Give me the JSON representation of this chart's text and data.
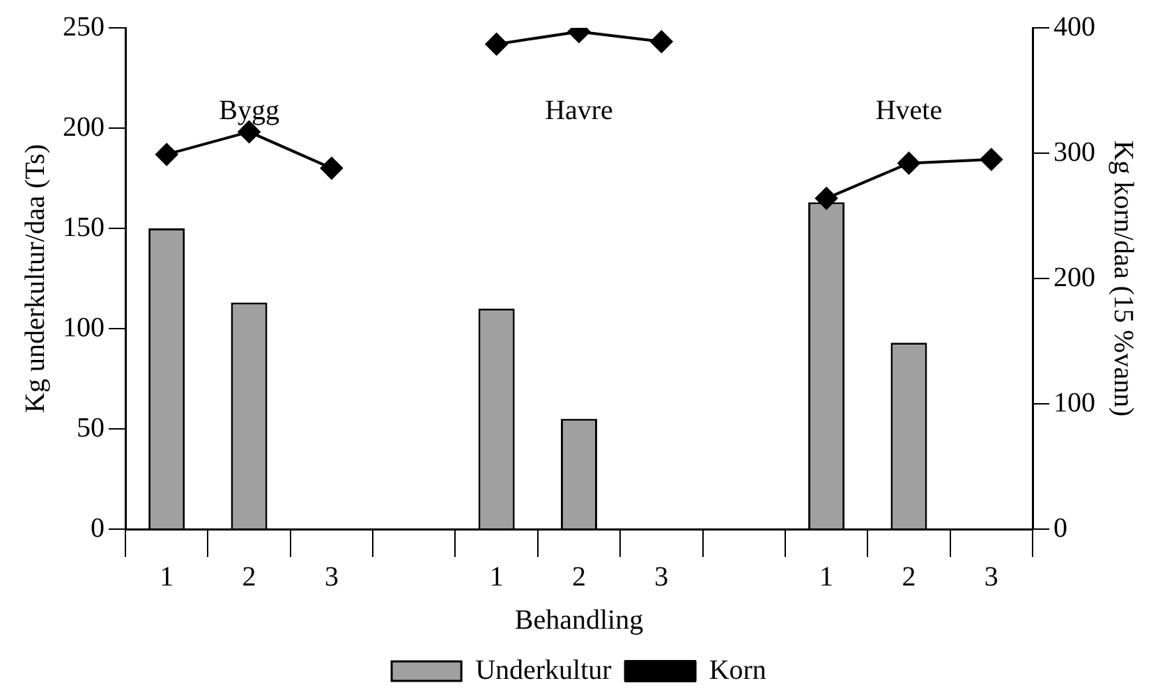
{
  "chart_data": {
    "type": "bar",
    "xlabel": "Behandling",
    "ylabel": "Kg underkultur/daa (Ts)",
    "y2label": "Kg korn/daa (15 %vann)",
    "categories": [
      "1",
      "2",
      "3",
      null,
      "1",
      "2",
      "3",
      null,
      "1",
      "2",
      "3"
    ],
    "series": [
      {
        "name": "Underkultur",
        "color": "#a0a0a0",
        "values": [
          150,
          113,
          null,
          null,
          110,
          55,
          null,
          null,
          163,
          93,
          null
        ]
      },
      {
        "name": "Korn",
        "type": "line",
        "axis": "y2",
        "color": "#000000",
        "marker": "diamond",
        "values": [
          299,
          317,
          288,
          null,
          387,
          397,
          389,
          null,
          264,
          292,
          295
        ]
      }
    ],
    "annotations": [
      "Bygg",
      "Havre",
      "Hvete"
    ],
    "ylim": [
      0,
      250
    ],
    "yticks": [
      0,
      50,
      100,
      150,
      200,
      250
    ],
    "y2lim": [
      0,
      400
    ],
    "y2ticks": [
      0,
      100,
      200,
      300,
      400
    ],
    "grid": false,
    "legend": "bottom"
  }
}
